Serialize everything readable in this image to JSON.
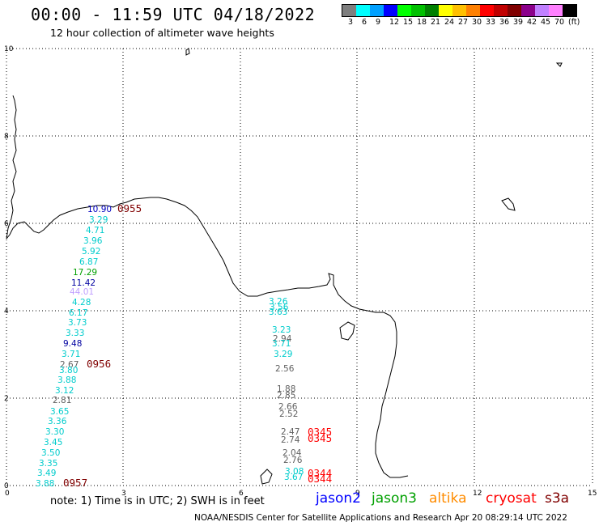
{
  "header": {
    "title": "00:00 - 11:59 UTC 04/18/2022",
    "subtitle": "12 hour collection of altimeter wave heights"
  },
  "legend": {
    "unit": "(ft)",
    "colors": [
      "#7f7f7f",
      "#00ffff",
      "#00a0ff",
      "#0000ff",
      "#00ff00",
      "#00c000",
      "#008000",
      "#ffff00",
      "#ffc000",
      "#ff8000",
      "#ff0000",
      "#c00000",
      "#800000",
      "#8b008b",
      "#c080ff",
      "#ff80ff",
      "#000000"
    ],
    "labels": [
      "3",
      "6",
      "9",
      "12",
      "15",
      "18",
      "21",
      "24",
      "27",
      "30",
      "33",
      "36",
      "39",
      "42",
      "45",
      "70"
    ]
  },
  "axes": {
    "x_ticks": [
      "0",
      "3",
      "6",
      "9",
      "12",
      "15"
    ],
    "y_ticks": [
      "10",
      "8",
      "6",
      "4",
      "2",
      "0"
    ],
    "grid": "dotted"
  },
  "tracks": [
    {
      "time": "0955",
      "time_color": "#800000",
      "heights": [
        {
          "v": "10.90",
          "c": "#0000c0"
        },
        {
          "v": "3.29",
          "c": "#00cccc"
        },
        {
          "v": "4.71",
          "c": "#00cccc"
        },
        {
          "v": "3.96",
          "c": "#00cccc"
        },
        {
          "v": "5.92",
          "c": "#00cccc"
        },
        {
          "v": "6.87",
          "c": "#00cccc"
        },
        {
          "v": "17.29",
          "c": "#00a000"
        },
        {
          "v": "11.42",
          "c": "#0000a0"
        },
        {
          "v": "44.01",
          "c": "#c0a0ff"
        },
        {
          "v": "4.28",
          "c": "#00cccc"
        },
        {
          "v": "6.17",
          "c": "#00cccc"
        },
        {
          "v": "3.73",
          "c": "#00cccc"
        },
        {
          "v": "3.33",
          "c": "#00cccc"
        },
        {
          "v": "9.48",
          "c": "#0000a0"
        },
        {
          "v": "3.71",
          "c": "#00cccc"
        },
        {
          "v": "2.67",
          "c": "#606060"
        },
        {
          "v": "3.80",
          "c": "#00cccc"
        },
        {
          "v": "3.88",
          "c": "#00cccc"
        },
        {
          "v": "3.12",
          "c": "#00cccc"
        },
        {
          "v": "2.81",
          "c": "#606060"
        },
        {
          "v": "3.65",
          "c": "#00cccc"
        },
        {
          "v": "3.36",
          "c": "#00cccc"
        },
        {
          "v": "3.30",
          "c": "#00cccc"
        },
        {
          "v": "3.45",
          "c": "#00cccc"
        },
        {
          "v": "3.50",
          "c": "#00cccc"
        },
        {
          "v": "3.35",
          "c": "#00cccc"
        },
        {
          "v": "3.49",
          "c": "#00cccc"
        },
        {
          "v": "3.88",
          "c": "#00cccc"
        }
      ],
      "mid_time": "0956",
      "end_time": "0957"
    },
    {
      "time": "0345",
      "time_color": "#ff0000",
      "heights": [
        {
          "v": "3.26",
          "c": "#00cccc"
        },
        {
          "v": "3.56",
          "c": "#00cccc"
        },
        {
          "v": "3.63",
          "c": "#00cccc"
        },
        {
          "v": "3.23",
          "c": "#00cccc"
        },
        {
          "v": "2.94",
          "c": "#606060"
        },
        {
          "v": "3.71",
          "c": "#00cccc"
        },
        {
          "v": "3.29",
          "c": "#00cccc"
        },
        {
          "v": "2.56",
          "c": "#606060"
        },
        {
          "v": "1.88",
          "c": "#606060"
        },
        {
          "v": "2.85",
          "c": "#606060"
        },
        {
          "v": "2.66",
          "c": "#606060"
        },
        {
          "v": "2.52",
          "c": "#606060"
        },
        {
          "v": "2.47",
          "c": "#606060"
        },
        {
          "v": "2.74",
          "c": "#606060"
        },
        {
          "v": "2.04",
          "c": "#606060"
        },
        {
          "v": "2.76",
          "c": "#606060"
        },
        {
          "v": "3.08",
          "c": "#00cccc"
        },
        {
          "v": "3.67",
          "c": "#00cccc"
        }
      ],
      "times": [
        "0345",
        "0345",
        "0344",
        "0344"
      ]
    }
  ],
  "note": "note: 1) Time is in UTC; 2) SWH is in feet",
  "satellites": [
    {
      "name": "jason2",
      "color": "#0000ff"
    },
    {
      "name": "jason3",
      "color": "#00a000"
    },
    {
      "name": "altika",
      "color": "#ff8c00"
    },
    {
      "name": "cryosat",
      "color": "#ff0000"
    },
    {
      "name": "s3a",
      "color": "#800000"
    }
  ],
  "footer": "NOAA/NESDIS Center for Satellite Applications and Research   Apr 20 08:29:14 UTC 2022"
}
